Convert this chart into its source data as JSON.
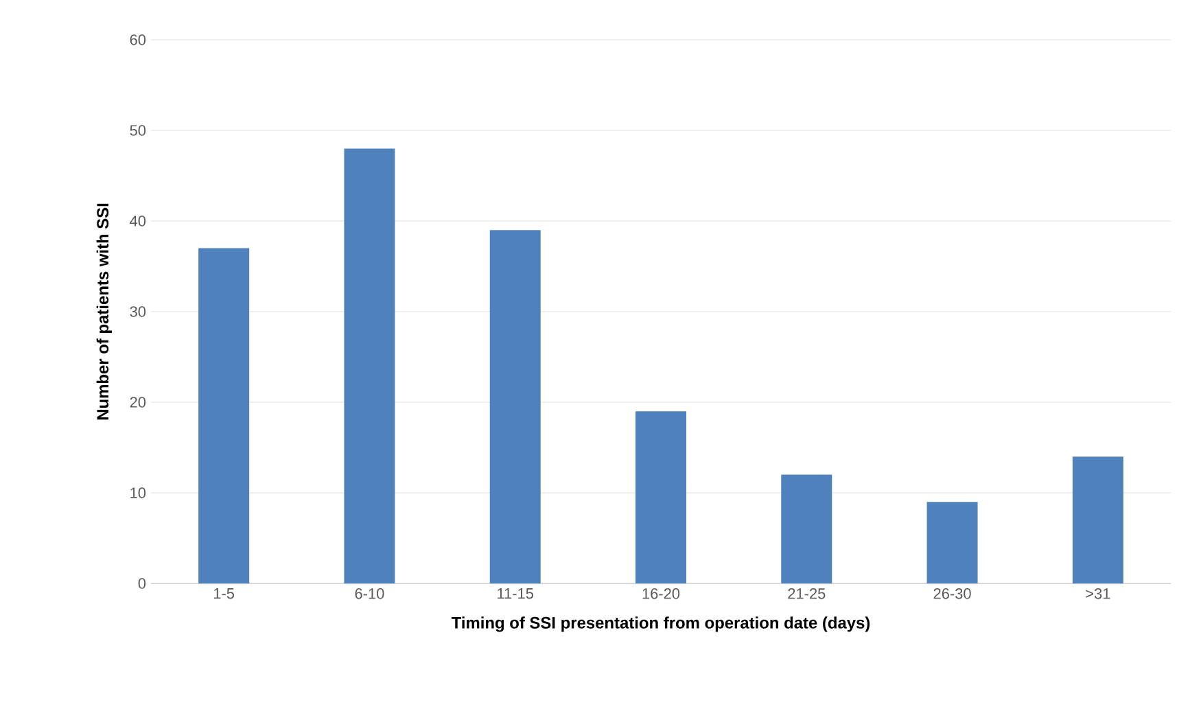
{
  "chart_data": {
    "type": "bar",
    "xlabel": "Timing of SSI presentation from operation date (days)",
    "ylabel": "Number of patients with SSI",
    "categories": [
      "1-5",
      "6-10",
      "11-15",
      "16-20",
      "21-25",
      "26-30",
      ">31"
    ],
    "values": [
      37,
      48,
      39,
      19,
      12,
      9,
      14
    ],
    "color": "#4f81bd",
    "ylim": [
      0,
      60
    ],
    "yticks": [
      0,
      10,
      20,
      30,
      40,
      50,
      60
    ],
    "grid": "y"
  }
}
